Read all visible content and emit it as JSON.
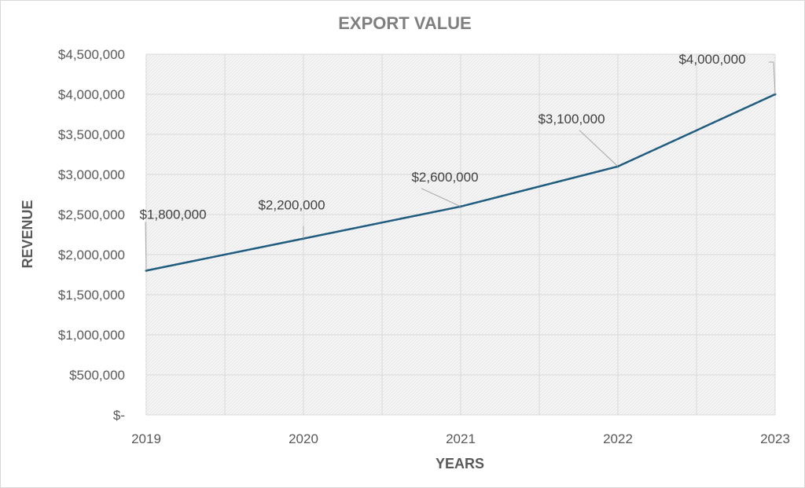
{
  "chart_data": {
    "type": "line",
    "title": "EXPORT VALUE",
    "xlabel": "YEARS",
    "ylabel": "REVENUE",
    "categories": [
      "2019",
      "2020",
      "2021",
      "2022",
      "2023"
    ],
    "series": [
      {
        "values": [
          1800000,
          2200000,
          2600000,
          3100000,
          4000000
        ],
        "data_labels": [
          "$1,800,000",
          "$2,200,000",
          "$2,600,000",
          "$3,100,000",
          "$4,000,000"
        ],
        "color": "#1f5c7f"
      }
    ],
    "ylim": [
      0,
      4500000
    ],
    "yticks": [
      0,
      500000,
      1000000,
      1500000,
      2000000,
      2500000,
      3000000,
      3500000,
      4000000,
      4500000
    ],
    "ytick_labels": [
      "$-",
      "$500,000",
      "$1,000,000",
      "$1,500,000",
      "$2,000,000",
      "$2,500,000",
      "$3,000,000",
      "$3,500,000",
      "$4,000,000",
      "$4,500,000"
    ],
    "grid": true,
    "plot_fill": "hatched-light-gray",
    "gridline_color": "#d9d9d9"
  }
}
